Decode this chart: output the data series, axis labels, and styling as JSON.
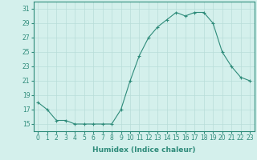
{
  "x": [
    0,
    1,
    2,
    3,
    4,
    5,
    6,
    7,
    8,
    9,
    10,
    11,
    12,
    13,
    14,
    15,
    16,
    17,
    18,
    19,
    20,
    21,
    22,
    23
  ],
  "y": [
    18,
    17,
    15.5,
    15.5,
    15,
    15,
    15,
    15,
    15,
    17,
    21,
    24.5,
    27,
    28.5,
    29.5,
    30.5,
    30,
    30.5,
    30.5,
    29,
    25,
    23,
    21.5,
    21
  ],
  "xlabel": "Humidex (Indice chaleur)",
  "xlim": [
    -0.5,
    23.5
  ],
  "ylim": [
    14,
    32
  ],
  "yticks": [
    15,
    17,
    19,
    21,
    23,
    25,
    27,
    29,
    31
  ],
  "xticks": [
    0,
    1,
    2,
    3,
    4,
    5,
    6,
    7,
    8,
    9,
    10,
    11,
    12,
    13,
    14,
    15,
    16,
    17,
    18,
    19,
    20,
    21,
    22,
    23
  ],
  "line_color": "#2e8b7a",
  "marker": "+",
  "bg_color": "#d4f0ec",
  "grid_color": "#b8ddd8",
  "label_fontsize": 6.5,
  "tick_fontsize": 5.5
}
